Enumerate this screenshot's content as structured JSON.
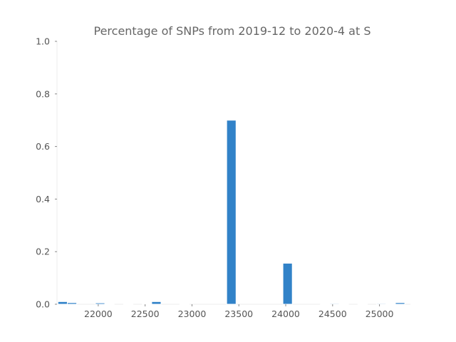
{
  "chart_data": {
    "type": "bar",
    "title": "Percentage of SNPs from 2019-12 to 2020-4 at S",
    "xlabel": "",
    "ylabel": "",
    "xlim": [
      21560,
      25330
    ],
    "ylim": [
      0,
      1.0
    ],
    "x_ticks": [
      22000,
      22500,
      23000,
      23500,
      24000,
      24500,
      25000
    ],
    "y_ticks": [
      "0.0",
      "0.2",
      "0.4",
      "0.6",
      "0.8",
      "1.0"
    ],
    "bar_width": 100,
    "grid": false,
    "bars": [
      {
        "x": 21620,
        "value": 0.01
      },
      {
        "x": 21720,
        "value": 0.006
      },
      {
        "x": 22020,
        "value": 0.005
      },
      {
        "x": 22120,
        "value": 0.001
      },
      {
        "x": 22320,
        "value": 0.001
      },
      {
        "x": 22520,
        "value": 0.001
      },
      {
        "x": 22620,
        "value": 0.01
      },
      {
        "x": 22920,
        "value": 0.001
      },
      {
        "x": 23420,
        "value": 0.7
      },
      {
        "x": 24020,
        "value": 0.156
      },
      {
        "x": 24420,
        "value": 0.001
      },
      {
        "x": 24520,
        "value": 0.003
      },
      {
        "x": 24620,
        "value": 0.001
      },
      {
        "x": 24820,
        "value": 0.001
      },
      {
        "x": 25020,
        "value": 0.003
      },
      {
        "x": 25120,
        "value": 0.001
      },
      {
        "x": 25220,
        "value": 0.006
      }
    ]
  }
}
